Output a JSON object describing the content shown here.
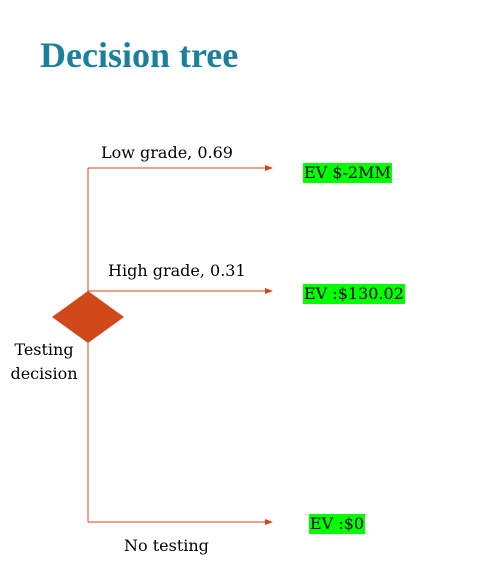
{
  "title": "Decision tree",
  "decision_node": {
    "label_line1": "Testing",
    "label_line2": "decision",
    "color": "#d1491b"
  },
  "branches": [
    {
      "label": "Low grade, 0.69",
      "outcome": "EV $-2MM"
    },
    {
      "label": "High grade, 0.31",
      "outcome": "EV :$130.02"
    },
    {
      "label": "No testing",
      "outcome": "EV :$0"
    }
  ],
  "colors": {
    "title": "#1b7f9e",
    "branch_line": "#d1491b",
    "outcome_highlight": "#00ff00"
  }
}
